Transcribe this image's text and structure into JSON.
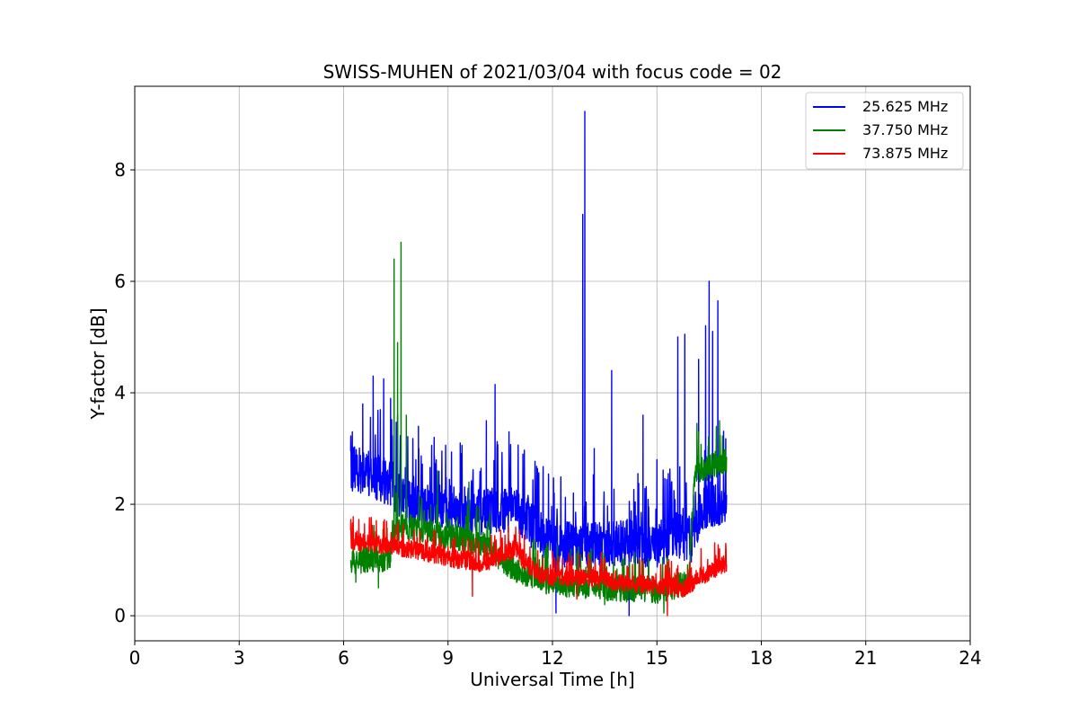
{
  "chart_data": {
    "type": "line",
    "title": "SWISS-MUHEN of 2021/03/04 with focus code = 02",
    "xlabel": "Universal Time [h]",
    "ylabel": "Y-factor [dB]",
    "xlim": [
      0,
      24
    ],
    "ylim": [
      -0.45,
      9.5
    ],
    "x_ticks": [
      0,
      3,
      6,
      9,
      12,
      15,
      18,
      21,
      24
    ],
    "x_tick_labels": [
      "0",
      "3",
      "6",
      "9",
      "12",
      "15",
      "18",
      "21",
      "24"
    ],
    "y_ticks": [
      0,
      2,
      4,
      6,
      8
    ],
    "y_tick_labels": [
      "0",
      "2",
      "4",
      "6",
      "8"
    ],
    "grid": true,
    "legend_position": "top-right",
    "series": [
      {
        "name": "25.625 MHz",
        "color": "#0000ff",
        "base": [
          [
            6.2,
            2.7
          ],
          [
            6.6,
            2.6
          ],
          [
            7.0,
            2.5
          ],
          [
            7.4,
            2.4
          ],
          [
            7.7,
            2.1
          ],
          [
            8.0,
            2.0
          ],
          [
            9.0,
            1.95
          ],
          [
            10.0,
            1.9
          ],
          [
            10.8,
            1.95
          ],
          [
            11.2,
            1.8
          ],
          [
            11.6,
            1.5
          ],
          [
            12.0,
            1.3
          ],
          [
            13.0,
            1.3
          ],
          [
            14.0,
            1.35
          ],
          [
            15.0,
            1.3
          ],
          [
            15.5,
            1.5
          ],
          [
            16.0,
            1.4
          ],
          [
            16.3,
            2.0
          ],
          [
            17.0,
            2.1
          ]
        ],
        "spread": 0.9,
        "peaks": [
          [
            6.25,
            3.3
          ],
          [
            6.55,
            3.8
          ],
          [
            6.85,
            4.3
          ],
          [
            7.15,
            4.25
          ],
          [
            7.35,
            3.9
          ],
          [
            7.55,
            3.6
          ],
          [
            8.15,
            3.4
          ],
          [
            8.6,
            3.2
          ],
          [
            9.35,
            3.1
          ],
          [
            10.1,
            3.5
          ],
          [
            10.35,
            4.15
          ],
          [
            10.75,
            3.3
          ],
          [
            11.15,
            2.9
          ],
          [
            12.05,
            2.2
          ],
          [
            12.6,
            2.2
          ],
          [
            12.87,
            7.2
          ],
          [
            12.93,
            9.05
          ],
          [
            13.2,
            3.0
          ],
          [
            13.7,
            4.4
          ],
          [
            14.6,
            3.6
          ],
          [
            15.0,
            2.8
          ],
          [
            15.6,
            5.0
          ],
          [
            15.8,
            5.05
          ],
          [
            16.2,
            4.6
          ],
          [
            16.4,
            5.2
          ],
          [
            16.5,
            6.0
          ],
          [
            16.6,
            5.1
          ],
          [
            16.75,
            5.65
          ]
        ],
        "dips": [
          [
            12.1,
            0.05
          ],
          [
            14.2,
            0.0
          ]
        ]
      },
      {
        "name": "37.750 MHz",
        "color": "#008000",
        "base": [
          [
            6.2,
            1.0
          ],
          [
            7.0,
            1.0
          ],
          [
            7.35,
            1.1
          ],
          [
            7.45,
            1.6
          ],
          [
            8.0,
            1.6
          ],
          [
            9.0,
            1.45
          ],
          [
            10.0,
            1.3
          ],
          [
            11.0,
            0.8
          ],
          [
            12.0,
            0.6
          ],
          [
            13.0,
            0.55
          ],
          [
            14.0,
            0.5
          ],
          [
            15.0,
            0.45
          ],
          [
            15.9,
            0.6
          ],
          [
            16.1,
            2.6
          ],
          [
            17.0,
            2.8
          ]
        ],
        "spread": 0.5,
        "peaks": [
          [
            7.45,
            6.4
          ],
          [
            7.65,
            6.7
          ],
          [
            7.55,
            4.9
          ],
          [
            7.8,
            3.6
          ],
          [
            8.7,
            2.6
          ],
          [
            9.6,
            2.4
          ],
          [
            16.15,
            3.45
          ],
          [
            16.8,
            3.5
          ]
        ],
        "dips": [
          [
            6.35,
            0.6
          ],
          [
            7.0,
            0.5
          ],
          [
            13.5,
            0.2
          ],
          [
            15.2,
            0.05
          ]
        ]
      },
      {
        "name": "73.875 MHz",
        "color": "#ff0000",
        "base": [
          [
            6.2,
            1.35
          ],
          [
            7.0,
            1.3
          ],
          [
            8.0,
            1.2
          ],
          [
            9.0,
            1.05
          ],
          [
            10.0,
            0.95
          ],
          [
            10.9,
            1.2
          ],
          [
            11.5,
            0.8
          ],
          [
            12.0,
            0.7
          ],
          [
            13.0,
            0.7
          ],
          [
            14.0,
            0.6
          ],
          [
            15.0,
            0.55
          ],
          [
            15.8,
            0.5
          ],
          [
            16.2,
            0.7
          ],
          [
            17.0,
            0.95
          ]
        ],
        "spread": 0.35,
        "peaks": [
          [
            6.6,
            1.65
          ],
          [
            10.9,
            1.45
          ],
          [
            15.6,
            0.9
          ],
          [
            16.8,
            1.2
          ]
        ],
        "dips": [
          [
            9.7,
            0.35
          ],
          [
            12.7,
            0.3
          ],
          [
            15.3,
            0.0
          ]
        ]
      }
    ]
  }
}
